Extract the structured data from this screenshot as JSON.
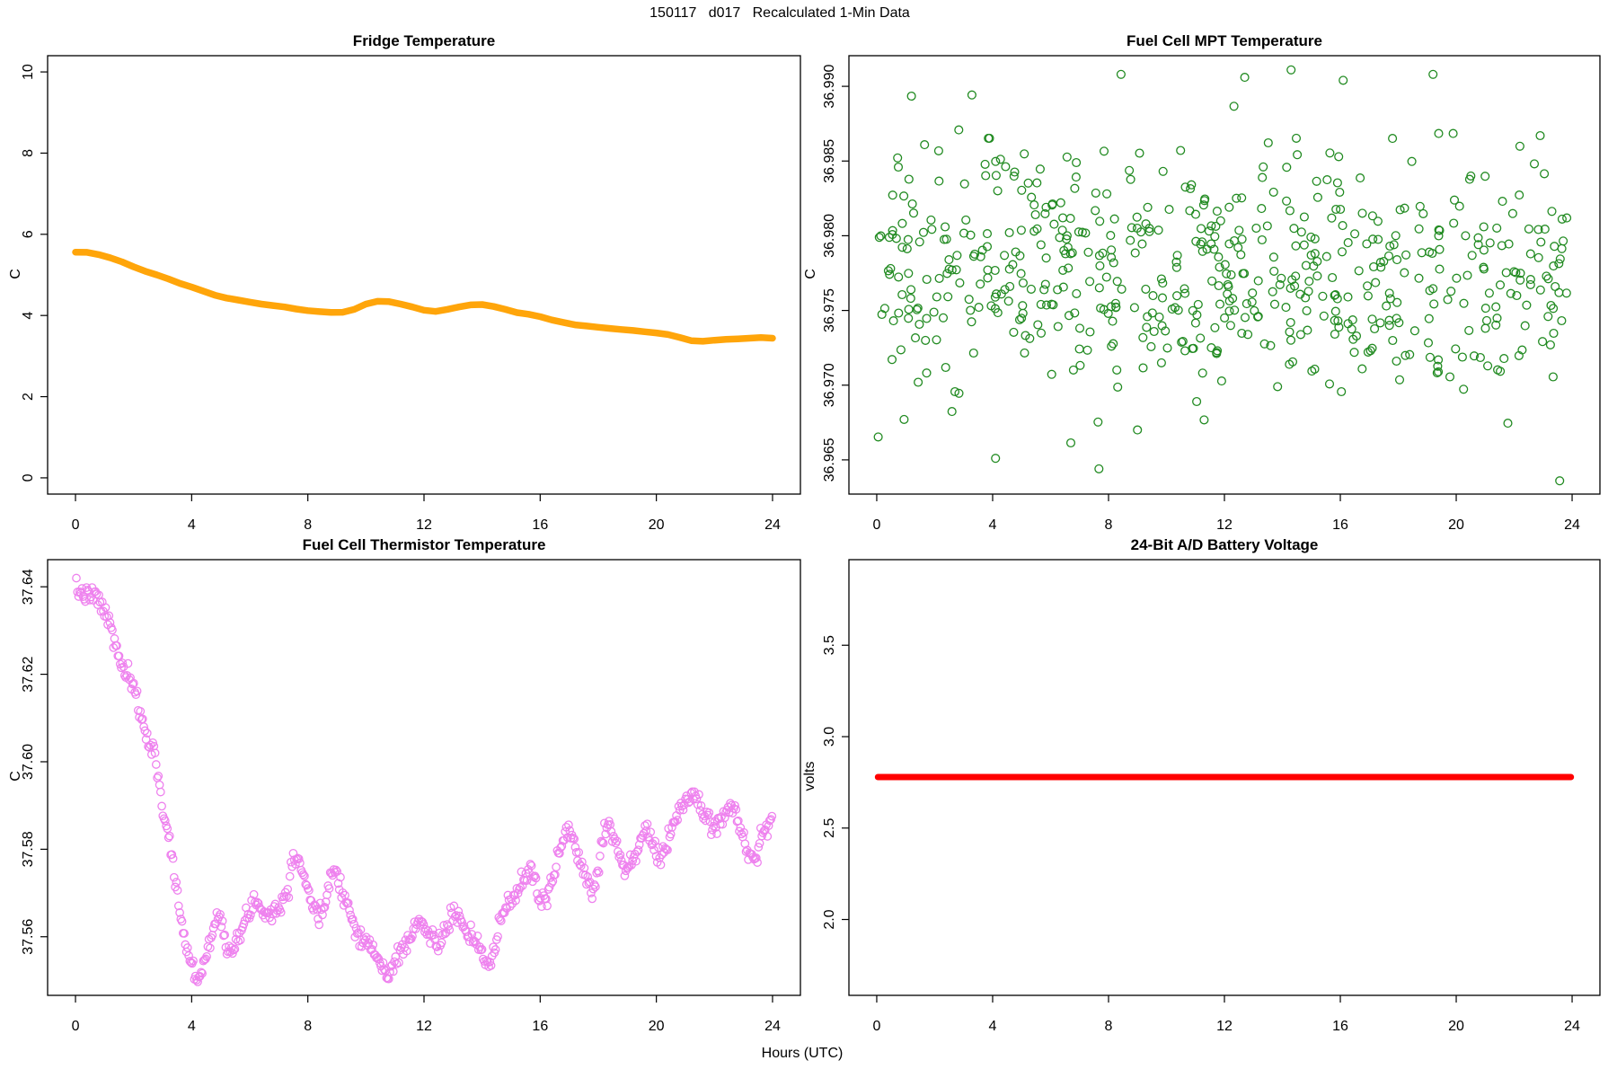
{
  "header": {
    "title": "150117   d017   Recalculated 1-Min Data"
  },
  "footer": {
    "xlabel": "Hours (UTC)"
  },
  "chart_data": [
    {
      "id": "fridge-temperature",
      "type": "line",
      "title": "Fridge Temperature",
      "ylabel": "C",
      "xlabel": "Hours (UTC)",
      "color": "#FFA50A",
      "line_width": 7.5,
      "xlim": [
        -0.96,
        24.96
      ],
      "ylim": [
        -0.4,
        10.4
      ],
      "xticks": {
        "values": [
          0,
          4,
          8,
          12,
          16,
          20,
          24
        ],
        "labels": [
          "0",
          "4",
          "8",
          "12",
          "16",
          "20",
          "24"
        ]
      },
      "yticks": {
        "values": [
          0,
          2,
          4,
          6,
          8,
          10
        ],
        "labels": [
          "0",
          "2",
          "4",
          "6",
          "8",
          "10"
        ]
      },
      "points": [
        [
          0,
          5.56
        ],
        [
          0.4,
          5.555
        ],
        [
          0.8,
          5.5
        ],
        [
          1.2,
          5.42
        ],
        [
          1.6,
          5.32
        ],
        [
          2,
          5.2
        ],
        [
          2.4,
          5.09
        ],
        [
          2.8,
          5.0
        ],
        [
          3.2,
          4.9
        ],
        [
          3.6,
          4.79
        ],
        [
          4,
          4.7
        ],
        [
          4.4,
          4.6
        ],
        [
          4.8,
          4.5
        ],
        [
          5.2,
          4.43
        ],
        [
          5.6,
          4.38
        ],
        [
          6,
          4.33
        ],
        [
          6.4,
          4.28
        ],
        [
          6.8,
          4.245
        ],
        [
          7.2,
          4.21
        ],
        [
          7.6,
          4.16
        ],
        [
          8,
          4.12
        ],
        [
          8.4,
          4.095
        ],
        [
          8.8,
          4.075
        ],
        [
          9.2,
          4.08
        ],
        [
          9.6,
          4.15
        ],
        [
          10,
          4.28
        ],
        [
          10.4,
          4.35
        ],
        [
          10.8,
          4.34
        ],
        [
          11.2,
          4.28
        ],
        [
          11.6,
          4.21
        ],
        [
          12,
          4.13
        ],
        [
          12.4,
          4.1
        ],
        [
          12.8,
          4.15
        ],
        [
          13.2,
          4.21
        ],
        [
          13.6,
          4.26
        ],
        [
          14,
          4.27
        ],
        [
          14.4,
          4.22
        ],
        [
          14.8,
          4.15
        ],
        [
          15.2,
          4.07
        ],
        [
          15.6,
          4.03
        ],
        [
          16,
          3.97
        ],
        [
          16.4,
          3.89
        ],
        [
          16.8,
          3.83
        ],
        [
          17.2,
          3.77
        ],
        [
          17.6,
          3.74
        ],
        [
          18,
          3.71
        ],
        [
          18.4,
          3.68
        ],
        [
          18.8,
          3.655
        ],
        [
          19.2,
          3.63
        ],
        [
          19.6,
          3.6
        ],
        [
          20,
          3.57
        ],
        [
          20.4,
          3.53
        ],
        [
          20.8,
          3.46
        ],
        [
          21.2,
          3.38
        ],
        [
          21.6,
          3.365
        ],
        [
          22,
          3.39
        ],
        [
          22.4,
          3.41
        ],
        [
          22.8,
          3.425
        ],
        [
          23.2,
          3.44
        ],
        [
          23.6,
          3.455
        ],
        [
          24,
          3.44
        ]
      ]
    },
    {
      "id": "fuel-cell-mpt-temperature",
      "type": "scatter-cloud",
      "title": "Fuel Cell MPT Temperature",
      "ylabel": "C",
      "xlabel": "Hours (UTC)",
      "color": "#228B22",
      "marker_radius": 4.4,
      "marker_stroke": 1.3,
      "n": 600,
      "seed": 42,
      "x_range": [
        0.05,
        23.92
      ],
      "mean": 36.9773,
      "sd": 0.0042,
      "clip": [
        36.9648,
        36.991
      ],
      "outliers": [
        [
          7.67,
          36.9644
        ],
        [
          23.57,
          36.9636
        ],
        [
          4.1,
          36.9651
        ],
        [
          8.43,
          36.9908
        ],
        [
          12.7,
          36.9906
        ],
        [
          19.2,
          36.9908
        ],
        [
          14.3,
          36.9911
        ],
        [
          16.1,
          36.9904
        ],
        [
          9.0,
          36.967
        ]
      ],
      "xlim": [
        -0.96,
        24.96
      ],
      "ylim": [
        36.96271,
        36.99205
      ],
      "xticks": {
        "values": [
          0,
          4,
          8,
          12,
          16,
          20,
          24
        ],
        "labels": [
          "0",
          "4",
          "8",
          "12",
          "16",
          "20",
          "24"
        ]
      },
      "yticks": {
        "values": [
          36.965,
          36.97,
          36.975,
          36.98,
          36.985,
          36.99
        ],
        "labels": [
          "36.965",
          "36.970",
          "36.975",
          "36.980",
          "36.985",
          "36.990"
        ]
      }
    },
    {
      "id": "fuel-cell-thermistor-temperature",
      "type": "scatter-trend",
      "title": "Fuel Cell Thermistor Temperature",
      "ylabel": "C",
      "xlabel": "Hours (UTC)",
      "color": "#EE82EE",
      "marker_radius": 4.2,
      "marker_stroke": 1.3,
      "n": 620,
      "seed": 7,
      "x_range": [
        0.03,
        23.98
      ],
      "jitter_sd": 0.0011,
      "clip": [
        37.548,
        37.6435
      ],
      "xlim": [
        -0.96,
        24.96
      ],
      "ylim": [
        37.5466,
        37.6462
      ],
      "xticks": {
        "values": [
          0,
          4,
          8,
          12,
          16,
          20,
          24
        ],
        "labels": [
          "0",
          "4",
          "8",
          "12",
          "16",
          "20",
          "24"
        ]
      },
      "yticks": {
        "values": [
          37.56,
          37.58,
          37.6,
          37.62,
          37.64
        ],
        "labels": [
          "37.56",
          "37.58",
          "37.60",
          "37.62",
          "37.64"
        ]
      },
      "anchors": [
        [
          0,
          37.639
        ],
        [
          0.3,
          37.6385
        ],
        [
          0.5,
          37.6375
        ],
        [
          0.7,
          37.638
        ],
        [
          0.9,
          37.6355
        ],
        [
          1.1,
          37.633
        ],
        [
          1.3,
          37.6285
        ],
        [
          1.5,
          37.6235
        ],
        [
          1.7,
          37.6205
        ],
        [
          1.9,
          37.618
        ],
        [
          2.1,
          37.6145
        ],
        [
          2.3,
          37.609
        ],
        [
          2.5,
          37.6055
        ],
        [
          2.7,
          37.6015
        ],
        [
          2.9,
          37.5955
        ],
        [
          3.0,
          37.5885
        ],
        [
          3.2,
          37.5835
        ],
        [
          3.4,
          37.5745
        ],
        [
          3.6,
          37.5655
        ],
        [
          3.8,
          37.558
        ],
        [
          4.0,
          37.5535
        ],
        [
          4.2,
          37.5502
        ],
        [
          4.4,
          37.5535
        ],
        [
          4.6,
          37.5585
        ],
        [
          4.8,
          37.5625
        ],
        [
          5.0,
          37.5655
        ],
        [
          5.2,
          37.5585
        ],
        [
          5.4,
          37.5565
        ],
        [
          5.6,
          37.559
        ],
        [
          5.8,
          37.5625
        ],
        [
          6.1,
          37.5685
        ],
        [
          6.4,
          37.5665
        ],
        [
          6.7,
          37.5655
        ],
        [
          7.0,
          37.5665
        ],
        [
          7.3,
          37.5705
        ],
        [
          7.5,
          37.5795
        ],
        [
          7.7,
          37.5775
        ],
        [
          8.0,
          37.571
        ],
        [
          8.2,
          37.5665
        ],
        [
          8.4,
          37.5635
        ],
        [
          8.6,
          37.568
        ],
        [
          8.8,
          37.5755
        ],
        [
          9.0,
          37.5745
        ],
        [
          9.3,
          37.5685
        ],
        [
          9.6,
          37.5625
        ],
        [
          9.9,
          37.5595
        ],
        [
          10.2,
          37.5575
        ],
        [
          10.5,
          37.5535
        ],
        [
          10.8,
          37.551
        ],
        [
          11.1,
          37.5555
        ],
        [
          11.4,
          37.559
        ],
        [
          11.7,
          37.562
        ],
        [
          11.9,
          37.5635
        ],
        [
          12.1,
          37.561
        ],
        [
          12.4,
          37.5585
        ],
        [
          12.7,
          37.5605
        ],
        [
          13.0,
          37.5655
        ],
        [
          13.2,
          37.5645
        ],
        [
          13.5,
          37.559
        ],
        [
          13.8,
          37.5595
        ],
        [
          14.0,
          37.5565
        ],
        [
          14.2,
          37.5525
        ],
        [
          14.4,
          37.5555
        ],
        [
          14.6,
          37.5635
        ],
        [
          14.9,
          37.568
        ],
        [
          15.2,
          37.57
        ],
        [
          15.5,
          37.574
        ],
        [
          15.7,
          37.5755
        ],
        [
          16.0,
          37.5685
        ],
        [
          16.2,
          37.5675
        ],
        [
          16.5,
          37.575
        ],
        [
          16.8,
          37.5835
        ],
        [
          17.0,
          37.5845
        ],
        [
          17.2,
          37.5805
        ],
        [
          17.5,
          37.575
        ],
        [
          17.8,
          37.5705
        ],
        [
          18.0,
          37.5755
        ],
        [
          18.2,
          37.5845
        ],
        [
          18.4,
          37.586
        ],
        [
          18.6,
          37.5815
        ],
        [
          18.8,
          37.578
        ],
        [
          19.0,
          37.5745
        ],
        [
          19.2,
          37.5775
        ],
        [
          19.5,
          37.5835
        ],
        [
          19.7,
          37.5845
        ],
        [
          19.9,
          37.5805
        ],
        [
          20.1,
          37.5775
        ],
        [
          20.3,
          37.579
        ],
        [
          20.6,
          37.5865
        ],
        [
          20.9,
          37.59
        ],
        [
          21.1,
          37.5915
        ],
        [
          21.3,
          37.5925
        ],
        [
          21.5,
          37.59
        ],
        [
          21.7,
          37.5875
        ],
        [
          21.9,
          37.5855
        ],
        [
          22.1,
          37.586
        ],
        [
          22.3,
          37.5875
        ],
        [
          22.5,
          37.589
        ],
        [
          22.7,
          37.5885
        ],
        [
          22.9,
          37.585
        ],
        [
          23.1,
          37.5805
        ],
        [
          23.3,
          37.5775
        ],
        [
          23.5,
          37.5795
        ],
        [
          23.7,
          37.5845
        ],
        [
          23.9,
          37.586
        ],
        [
          24,
          37.585
        ]
      ]
    },
    {
      "id": "battery-voltage",
      "type": "line",
      "title": "24-Bit A/D Battery Voltage",
      "ylabel": "volts",
      "xlabel": "Hours (UTC)",
      "color": "#FF0000",
      "line_width": 7,
      "xlim": [
        -0.96,
        24.96
      ],
      "ylim": [
        1.585,
        3.968
      ],
      "xticks": {
        "values": [
          0,
          4,
          8,
          12,
          16,
          20,
          24
        ],
        "labels": [
          "0",
          "4",
          "8",
          "12",
          "16",
          "20",
          "24"
        ]
      },
      "yticks": {
        "values": [
          2.0,
          2.5,
          3.0,
          3.5
        ],
        "labels": [
          "2.0",
          "2.5",
          "3.0",
          "3.5"
        ]
      },
      "points": [
        [
          0.04,
          2.779
        ],
        [
          23.96,
          2.779
        ]
      ]
    }
  ]
}
